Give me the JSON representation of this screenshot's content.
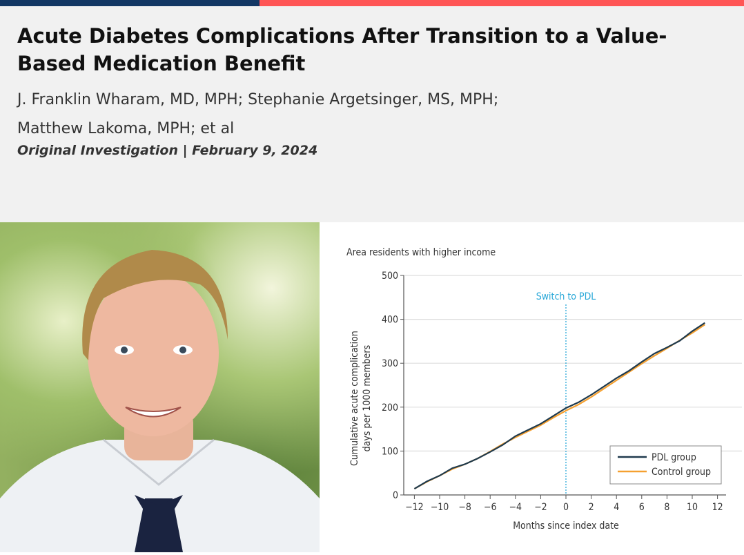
{
  "article": {
    "title": "Acute Diabetes Complications After Transition to a Value-Based Medication Benefit",
    "authors_line1": "J. Franklin Wharam, MD, MPH; Stephanie Argetsinger, MS, MPH;",
    "authors_line2": "Matthew Lakoma, MPH; et al",
    "meta": "Original Investigation | February 9, 2024"
  },
  "colors": {
    "top_bar_left": "#133764",
    "top_bar_right": "#ff5555",
    "pdl": "#1f3a4d",
    "control": "#f5a030",
    "annotation": "#29a8d8"
  },
  "photo": {
    "description_icon": "author-photo"
  },
  "chart_data": {
    "type": "line",
    "subtitle": "Area residents with higher income",
    "xlabel": "Months since index date",
    "ylabel": "Cumulative acute complication days per 1000 members",
    "ylabel_lines": [
      "Cumulative acute complication",
      "days per 1000 members"
    ],
    "xlim": [
      -13.5,
      13
    ],
    "ylim": [
      0,
      500
    ],
    "xticks": [
      -12,
      -10,
      -8,
      -6,
      -4,
      -2,
      0,
      2,
      4,
      6,
      8,
      10,
      12
    ],
    "yticks": [
      0,
      100,
      200,
      300,
      400,
      500
    ],
    "grid": "horizontal",
    "annotation": {
      "label": "Switch to PDL",
      "x": 0
    },
    "legend_position": "bottom-right",
    "x": [
      -12,
      -11,
      -10,
      -9,
      -8,
      -7,
      -6,
      -5,
      -4,
      -3,
      -2,
      -1,
      0,
      1,
      2,
      3,
      4,
      5,
      6,
      7,
      8,
      9,
      10,
      11
    ],
    "series": [
      {
        "name": "PDL group",
        "values": [
          14,
          31,
          44,
          61,
          70,
          83,
          98,
          114,
          134,
          148,
          162,
          180,
          198,
          211,
          228,
          247,
          266,
          283,
          303,
          322,
          336,
          351,
          373,
          392
        ]
      },
      {
        "name": "Control group",
        "values": [
          14,
          30,
          44,
          59,
          70,
          83,
          99,
          116,
          131,
          145,
          159,
          176,
          192,
          206,
          223,
          242,
          261,
          280,
          299,
          317,
          334,
          352,
          369,
          388
        ]
      }
    ]
  }
}
